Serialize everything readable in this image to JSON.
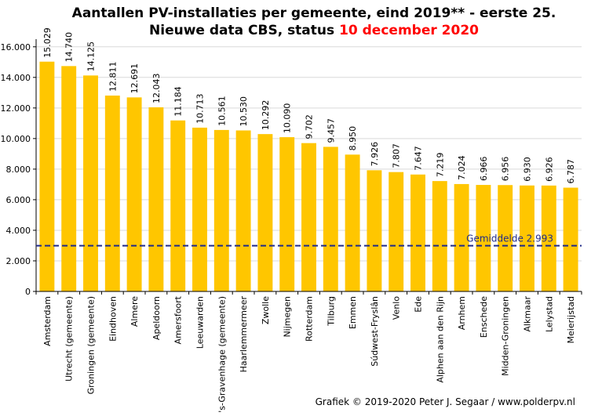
{
  "chart_data": {
    "type": "bar",
    "title_line1": "Aantallen PV-installaties  per gemeente, eind 2019** - eerste 25.",
    "title_line2_prefix": "Nieuwe data CBS, status ",
    "title_line2_date": "10 december 2020",
    "categories": [
      "Amsterdam",
      "Utrecht (gemeente)",
      "Groningen (gemeente)",
      "Eindhoven",
      "Almere",
      "Apeldoorn",
      "Amersfoort",
      "Leeuwarden",
      "'s-Gravenhage (gemeente)",
      "Haarlemmermeer",
      "Zwolle",
      "Nijmegen",
      "Rotterdam",
      "Tilburg",
      "Emmen",
      "Súdwest-Fryslân",
      "Venlo",
      "Ede",
      "Alphen aan den Rijn",
      "Arnhem",
      "Enschede",
      "Midden-Groningen",
      "Alkmaar",
      "Lelystad",
      "Meierijstad"
    ],
    "values": [
      15029,
      14740,
      14125,
      12811,
      12691,
      12043,
      11184,
      10713,
      10561,
      10530,
      10292,
      10090,
      9702,
      9457,
      8950,
      7926,
      7807,
      7647,
      7219,
      7024,
      6966,
      6956,
      6930,
      6926,
      6787
    ],
    "value_labels": [
      "15.029",
      "14.740",
      "14.125",
      "12.811",
      "12.691",
      "12.043",
      "11.184",
      "10.713",
      "10.561",
      "10.530",
      "10.292",
      "10.090",
      "9.702",
      "9.457",
      "8.950",
      "7.926",
      "7.807",
      "7.647",
      "7.219",
      "7.024",
      "6.966",
      "6.956",
      "6.930",
      "6.926",
      "6.787"
    ],
    "ylim": [
      0,
      16500
    ],
    "yticks": [
      0,
      2000,
      4000,
      6000,
      8000,
      10000,
      12000,
      14000,
      16000
    ],
    "ytick_labels": [
      "0",
      "2.000",
      "4.000",
      "6.000",
      "8.000",
      "10.000",
      "12.000",
      "14.000",
      "16.000"
    ],
    "grid": true,
    "average": {
      "value": 2993,
      "label": "Gemiddelde   2.993",
      "color": "#1f2a8a"
    },
    "bar_color": "#ffc600",
    "grid_color": "#d9d9d9",
    "title_date_color": "#ff0000",
    "credit": "Grafiek  © 2019-2020 Peter J. Segaar / www.polderpv.nl"
  }
}
